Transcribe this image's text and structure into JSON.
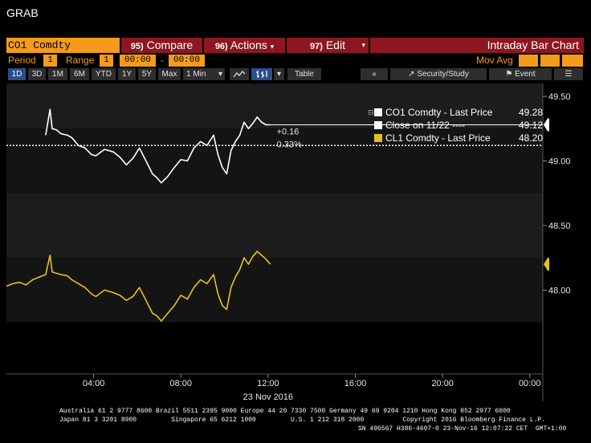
{
  "app_title": "GRAB",
  "toolbar": {
    "ticker_input": "CO1 Comdty",
    "compare": {
      "num": "95)",
      "label": "Compare"
    },
    "actions": {
      "num": "96)",
      "label": "Actions"
    },
    "edit": {
      "num": "97)",
      "label": "Edit"
    },
    "title": "Intraday Bar Chart"
  },
  "settings": {
    "period_label": "Period",
    "period_value": "1",
    "range_label": "Range",
    "range_value": "1",
    "time_start": "00:00",
    "time_sep": "-",
    "time_end": "00:00",
    "mov_avg_label": "Mov Avg"
  },
  "range_tabs": [
    "1D",
    "3D",
    "1M",
    "6M",
    "YTD",
    "1Y",
    "5Y",
    "Max"
  ],
  "selected_tab": "1D",
  "interval_select": "1 Min",
  "table_button": "Table",
  "security_button": "Security/Study",
  "event_button": "Event",
  "annotation": {
    "change": "+0.16",
    "pct": "0.33%"
  },
  "legend": [
    {
      "label": "CO1 Comdty - Last Price",
      "value": "49.28",
      "color": "#ffffff"
    },
    {
      "label": "Close on 11/22 ----",
      "value": "49.12",
      "color": "#ffffff"
    },
    {
      "label": "CL1 Comdty - Last Price",
      "value": "48.20",
      "color": "#e8c21a"
    }
  ],
  "price_tags": [
    {
      "value": "49.28",
      "y": 49.28,
      "bg": "#ffffff"
    },
    {
      "value": "48.20",
      "y": 48.2,
      "bg": "#e8c21a"
    }
  ],
  "chart_data": {
    "type": "line",
    "x_ticks": [
      "04:00",
      "08:00",
      "12:00",
      "16:00",
      "20:00",
      "00:00"
    ],
    "x_tick_hours": [
      4,
      8,
      12,
      16,
      20,
      24
    ],
    "xlabel": "23 Nov 2016",
    "xlim": [
      0,
      24.6
    ],
    "y_ticks": [
      "49.50",
      "49.00",
      "48.50",
      "48.00"
    ],
    "y_tick_values": [
      49.5,
      49.0,
      48.5,
      48.0
    ],
    "ylim": [
      47.35,
      49.6
    ],
    "reference_line": {
      "name": "Close on 11/22",
      "y": 49.12
    },
    "series": [
      {
        "name": "CO1 Comdty - Last Price",
        "color": "#ffffff",
        "x": [
          1.8,
          2.0,
          2.1,
          2.3,
          2.5,
          2.8,
          3.0,
          3.3,
          3.6,
          3.9,
          4.1,
          4.5,
          4.9,
          5.2,
          5.5,
          5.8,
          6.1,
          6.4,
          6.7,
          6.9,
          7.1,
          7.4,
          7.7,
          8.0,
          8.3,
          8.6,
          8.9,
          9.2,
          9.5,
          9.7,
          9.9,
          10.1,
          10.3,
          10.5,
          10.7,
          10.9,
          11.1,
          11.3,
          11.5,
          11.7,
          11.9,
          12.1
        ],
        "values": [
          49.2,
          49.4,
          49.25,
          49.24,
          49.21,
          49.2,
          49.18,
          49.12,
          49.1,
          49.05,
          49.04,
          49.09,
          49.07,
          49.03,
          48.97,
          49.02,
          49.1,
          49.0,
          48.9,
          48.87,
          48.83,
          48.88,
          48.95,
          49.01,
          49.0,
          49.1,
          49.15,
          49.12,
          49.2,
          49.05,
          48.95,
          48.9,
          49.08,
          49.15,
          49.2,
          49.3,
          49.25,
          49.29,
          49.34,
          49.3,
          49.28,
          49.28
        ]
      },
      {
        "name": "CL1 Comdty - Last Price",
        "color": "#e8c21a",
        "x": [
          0.0,
          0.3,
          0.6,
          0.9,
          1.2,
          1.5,
          1.8,
          2.0,
          2.1,
          2.3,
          2.5,
          2.8,
          3.0,
          3.3,
          3.6,
          3.9,
          4.1,
          4.5,
          4.9,
          5.2,
          5.5,
          5.8,
          6.1,
          6.4,
          6.7,
          6.9,
          7.1,
          7.4,
          7.7,
          8.0,
          8.3,
          8.6,
          8.9,
          9.2,
          9.5,
          9.7,
          9.9,
          10.1,
          10.3,
          10.5,
          10.7,
          10.9,
          11.1,
          11.3,
          11.5,
          11.7,
          11.9,
          12.1
        ],
        "values": [
          48.03,
          48.05,
          48.06,
          48.04,
          48.08,
          48.1,
          48.12,
          48.27,
          48.14,
          48.13,
          48.12,
          48.11,
          48.08,
          48.05,
          48.02,
          47.97,
          47.95,
          48.0,
          47.98,
          47.96,
          47.92,
          47.95,
          48.02,
          47.92,
          47.82,
          47.8,
          47.76,
          47.82,
          47.88,
          47.96,
          47.93,
          48.02,
          48.08,
          48.05,
          48.12,
          47.97,
          47.88,
          47.85,
          48.02,
          48.1,
          48.16,
          48.25,
          48.2,
          48.26,
          48.3,
          48.27,
          48.24,
          48.2
        ]
      }
    ]
  },
  "footer": {
    "line1": "Australia 61 2 9777 8600 Brazil 5511 2395 9000 Europe 44 20 7330 7500 Germany 49 69 9204 1210 Hong Kong 852 2977 6000",
    "line2": "Japan 81 3 3201 8900         Singapore 65 6212 1000         U.S. 1 212 318 2000          Copyright 2016 Bloomberg Finance L.P.",
    "line3": "SN 496567 H386-4607-0 23-Nov-16 12:07:22 CET  GMT+1:00"
  }
}
